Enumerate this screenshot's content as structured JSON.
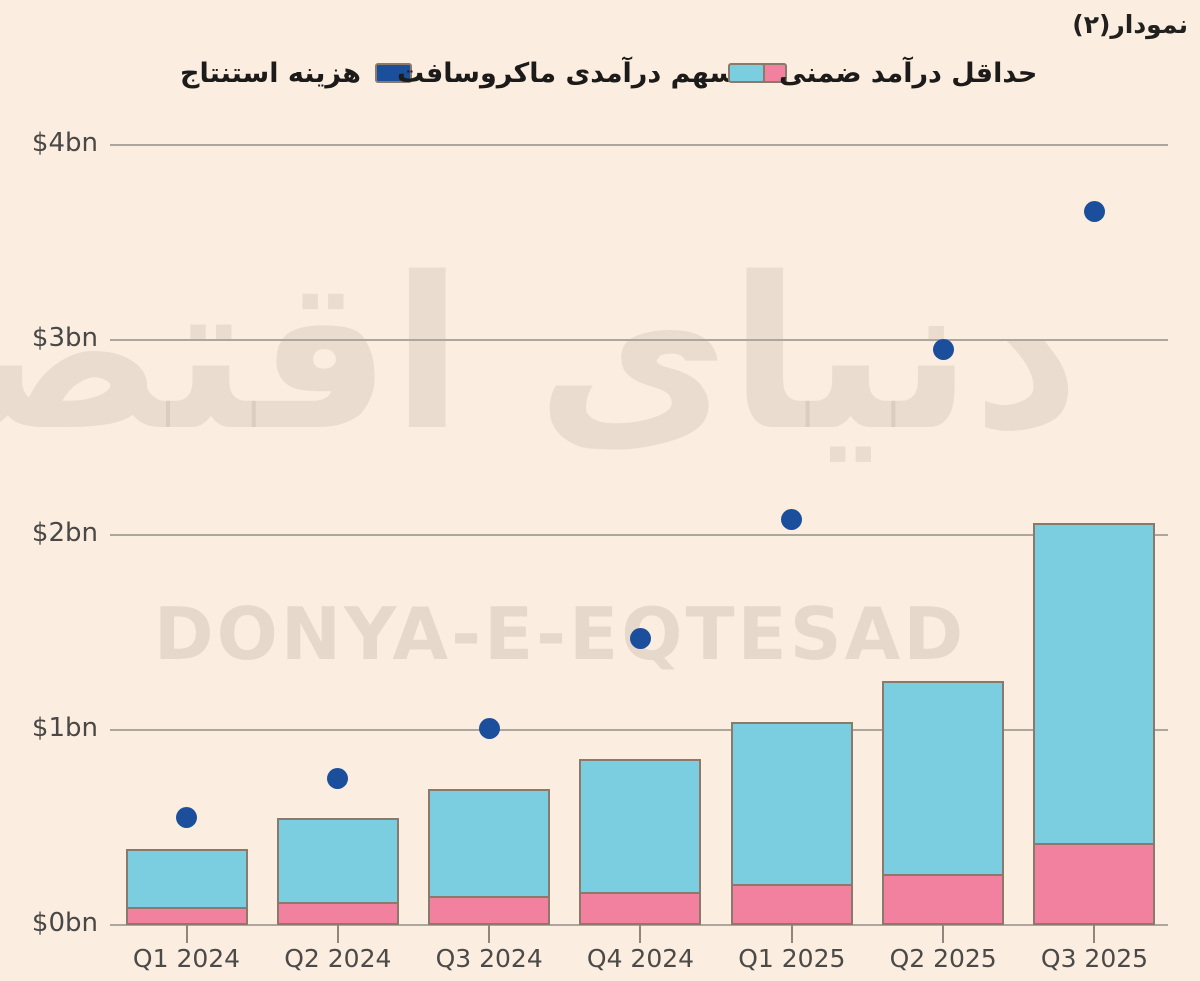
{
  "header": {
    "corner_label": "نمودار(۲)"
  },
  "legend": [
    {
      "id": "implied-revenue",
      "label": "حداقل درآمد ضمنی",
      "color": "#7bcde0"
    },
    {
      "id": "microsoft-share",
      "label": "سهم درآمدی ماکروسافت",
      "color": "#f2819f"
    },
    {
      "id": "inference-cost",
      "label": "هزینه استنتاج",
      "color": "#1b4f9c"
    }
  ],
  "watermark": {
    "persian": "دنیای اقتصاد",
    "latin": "DONYA-E-EQTESAD"
  },
  "colors": {
    "background": "#fbeee0",
    "gridline": "#ada69d",
    "bar_border": "#8b7a6c",
    "cyan_bar": "#7bcde0",
    "pink_bar": "#f2819f",
    "dot_blue": "#1b4f9c"
  },
  "chart_data": {
    "type": "bar",
    "subtype": "stacked-bars-with-scatter-overlay",
    "title": "",
    "xlabel": "",
    "ylabel": "",
    "categories": [
      "Q1 2024",
      "Q2 2024",
      "Q3 2024",
      "Q4 2024",
      "Q1 2025",
      "Q2 2025",
      "Q3 2025"
    ],
    "series": [
      {
        "name": "سهم درآمدی ماکروسافت",
        "role": "stack-bottom",
        "color": "#f2819f",
        "values": [
          0.08,
          0.11,
          0.14,
          0.16,
          0.2,
          0.25,
          0.41
        ]
      },
      {
        "name": "حداقل درآمد ضمنی",
        "role": "stack-top",
        "color": "#7bcde0",
        "values": [
          0.31,
          0.44,
          0.56,
          0.69,
          0.84,
          1.0,
          1.65
        ]
      },
      {
        "name": "هزینه استنتاج",
        "role": "scatter",
        "color": "#1b4f9c",
        "values": [
          0.55,
          0.75,
          1.01,
          1.47,
          2.08,
          2.95,
          3.66
        ]
      }
    ],
    "bar_totals": [
      0.39,
      0.55,
      0.7,
      0.85,
      1.04,
      1.25,
      2.06
    ],
    "y_ticks": [
      "$0bn",
      "$1bn",
      "$2bn",
      "$3bn",
      "$4bn"
    ],
    "ylim": [
      0,
      4
    ],
    "unit": "$bn",
    "grid": true,
    "legend_position": "top"
  }
}
